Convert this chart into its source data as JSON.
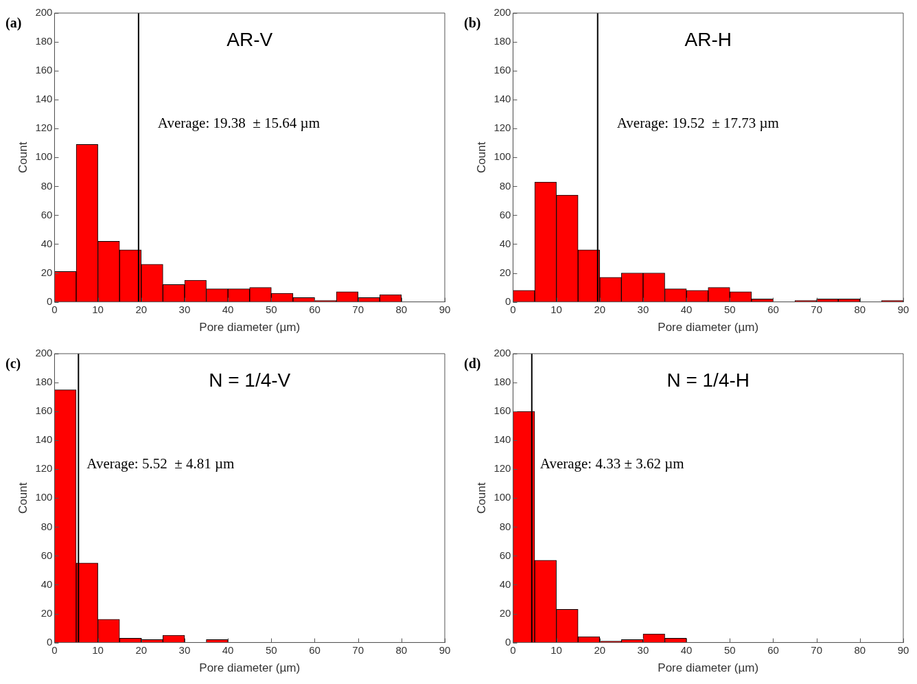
{
  "chart_data": [
    {
      "type": "histogram",
      "title": "AR-V",
      "xlabel": "Pore diameter (µm)",
      "ylabel": "Count",
      "annotations": [
        "(a)"
      ],
      "bins": [
        0,
        5,
        10,
        15,
        20,
        25,
        30,
        35,
        40,
        45,
        50,
        55,
        60,
        65,
        70,
        75,
        80
      ],
      "values": [
        21,
        109,
        42,
        36,
        26,
        12,
        15,
        9,
        9,
        10,
        6,
        3,
        1,
        7,
        3,
        5
      ],
      "color": "#ff0000",
      "xlim": [
        0,
        90
      ],
      "xticks": [
        0,
        10,
        20,
        30,
        40,
        50,
        60,
        70,
        80,
        90
      ],
      "ylim": [
        0,
        200
      ],
      "yticks": [
        0,
        20,
        40,
        60,
        80,
        100,
        120,
        140,
        160,
        180,
        200
      ],
      "ref_lines": [
        {
          "axis": "x",
          "value": 19.38,
          "label": "Average: 19.38  ± 15.64 µm",
          "color": "#000000"
        }
      ]
    },
    {
      "type": "histogram",
      "title": "AR-H",
      "xlabel": "Pore diameter (µm)",
      "ylabel": "Count",
      "annotations": [
        "(b)"
      ],
      "bins": [
        0,
        5,
        10,
        15,
        20,
        25,
        30,
        35,
        40,
        45,
        50,
        55,
        60,
        65,
        70,
        75,
        80,
        85,
        90
      ],
      "values": [
        8,
        83,
        74,
        36,
        17,
        20,
        20,
        9,
        8,
        10,
        7,
        2,
        0,
        1,
        2,
        2,
        0,
        1
      ],
      "color": "#ff0000",
      "xlim": [
        0,
        90
      ],
      "xticks": [
        0,
        10,
        20,
        30,
        40,
        50,
        60,
        70,
        80,
        90
      ],
      "ylim": [
        0,
        200
      ],
      "yticks": [
        0,
        20,
        40,
        60,
        80,
        100,
        120,
        140,
        160,
        180,
        200
      ],
      "ref_lines": [
        {
          "axis": "x",
          "value": 19.52,
          "label": "Average: 19.52  ± 17.73 µm",
          "color": "#000000"
        }
      ]
    },
    {
      "type": "histogram",
      "title": "N = 1/4-V",
      "xlabel": "Pore diameter (µm)",
      "ylabel": "Count",
      "annotations": [
        "(c)"
      ],
      "bins": [
        0,
        5,
        10,
        15,
        20,
        25,
        30,
        35,
        40
      ],
      "values": [
        175,
        55,
        16,
        3,
        2,
        5,
        0,
        2
      ],
      "color": "#ff0000",
      "xlim": [
        0,
        90
      ],
      "xticks": [
        0,
        10,
        20,
        30,
        40,
        50,
        60,
        70,
        80,
        90
      ],
      "ylim": [
        0,
        200
      ],
      "yticks": [
        0,
        20,
        40,
        60,
        80,
        100,
        120,
        140,
        160,
        180,
        200
      ],
      "ref_lines": [
        {
          "axis": "x",
          "value": 5.52,
          "label": "Average: 5.52  ± 4.81 µm",
          "color": "#000000"
        }
      ]
    },
    {
      "type": "histogram",
      "title": "N = 1/4-H",
      "xlabel": "Pore diameter (µm)",
      "ylabel": "Count",
      "annotations": [
        "(d)"
      ],
      "bins": [
        0,
        5,
        10,
        15,
        20,
        25,
        30,
        35,
        40
      ],
      "values": [
        160,
        57,
        23,
        4,
        1,
        2,
        6,
        3
      ],
      "color": "#ff0000",
      "xlim": [
        0,
        90
      ],
      "xticks": [
        0,
        10,
        20,
        30,
        40,
        50,
        60,
        70,
        80,
        90
      ],
      "ylim": [
        0,
        200
      ],
      "yticks": [
        0,
        20,
        40,
        60,
        80,
        100,
        120,
        140,
        160,
        180,
        200
      ],
      "ref_lines": [
        {
          "axis": "x",
          "value": 4.33,
          "label": "Average: 4.33 ± 3.62 µm",
          "color": "#000000"
        }
      ]
    }
  ]
}
